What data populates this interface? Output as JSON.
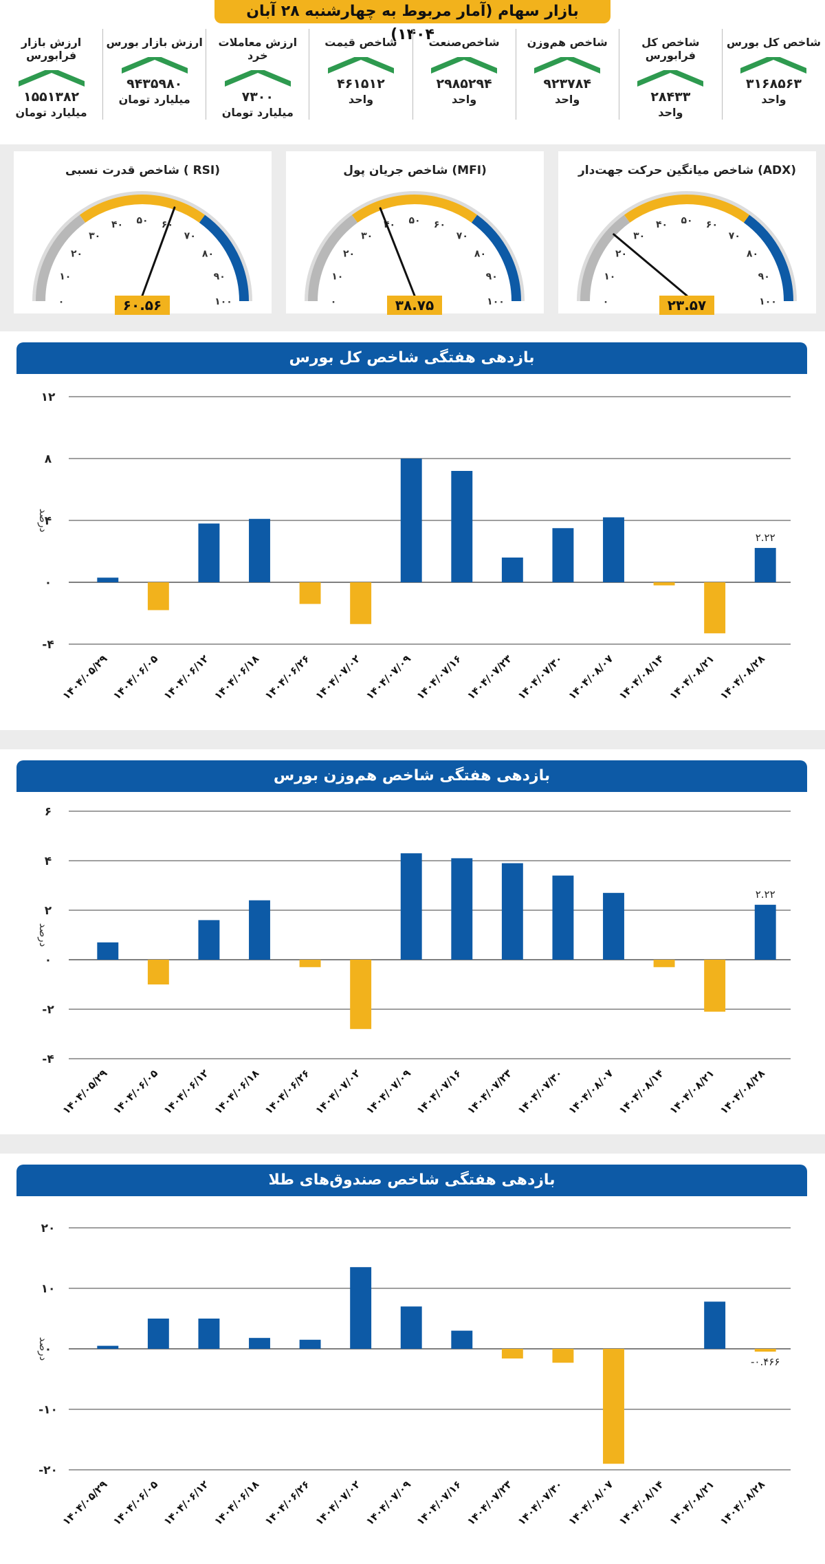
{
  "header": {
    "title": "بازار سهام (آمار مربوط به چهارشنبه ۲۸ آبان ۱۴۰۴)"
  },
  "stats": [
    {
      "label": "شاخص کل بورس",
      "value": "۳۱۶۸۵۶۳",
      "unit": "واحد"
    },
    {
      "label": "شاخص کل فرابورس",
      "value": "۲۸۴۳۳",
      "unit": "واحد"
    },
    {
      "label": "شاخص هم‌وزن",
      "value": "۹۲۳۷۸۴",
      "unit": "واحد"
    },
    {
      "label": "شاخص‌صنعت",
      "value": "۲۹۸۵۲۹۴",
      "unit": "واحد"
    },
    {
      "label": "شاخص قیمت",
      "value": "۴۶۱۵۱۲",
      "unit": "واحد"
    },
    {
      "label": "ارزش معاملات خرد",
      "value": "۷۳۰۰",
      "unit": "میلیارد تومان"
    },
    {
      "label": "ارزش بازار بورس",
      "value": "۹۴۳۵۹۸۰",
      "unit": "میلیارد تومان"
    },
    {
      "label": "ارزش بازار فرابورس",
      "value": "۱۵۵۱۳۸۲",
      "unit": "میلیارد تومان"
    }
  ],
  "gauges": [
    {
      "title": "شاخص میانگین حرکت جهت‌دار (ADX)",
      "value": 23.57,
      "value_label": "۲۳.۵۷",
      "ticks": [
        "۰",
        "۱۰",
        "۲۰",
        "۳۰",
        "۴۰",
        "۵۰",
        "۶۰",
        "۷۰",
        "۸۰",
        "۹۰",
        "۱۰۰"
      ]
    },
    {
      "title": "شاخص جریان پول (MFI)",
      "value": 38.75,
      "value_label": "۳۸.۷۵",
      "ticks": [
        "۰",
        "۱۰",
        "۲۰",
        "۳۰",
        "۴۰",
        "۵۰",
        "۶۰",
        "۷۰",
        "۸۰",
        "۹۰",
        "۱۰۰"
      ]
    },
    {
      "title": "شاخص قدرت نسبی ( RSI)",
      "value": 60.56,
      "value_label": "۶۰.۵۶",
      "ticks": [
        "۰",
        "۱۰",
        "۲۰",
        "۳۰",
        "۴۰",
        "۵۰",
        "۶۰",
        "۷۰",
        "۸۰",
        "۹۰",
        "۱۰۰"
      ]
    }
  ],
  "colors": {
    "accent": "#f2b21c",
    "blue": "#0d5aa6",
    "gray": "#b8b8b8",
    "needle": "#111111"
  },
  "chart_data": [
    {
      "type": "bar",
      "title": "بازدهی هفتگی شاخص کل بورس",
      "ylabel": "درصد",
      "ylim": [
        -4,
        12
      ],
      "yticks": [
        -4,
        0,
        4,
        8,
        12
      ],
      "ytick_labels": [
        "-۴",
        "۰",
        "۴",
        "۸",
        "۱۲"
      ],
      "categories": [
        "۱۴۰۴/۰۵/۲۹",
        "۱۴۰۴/۰۶/۰۵",
        "۱۴۰۴/۰۶/۱۲",
        "۱۴۰۴/۰۶/۱۸",
        "۱۴۰۴/۰۶/۲۶",
        "۱۴۰۴/۰۷/۰۲",
        "۱۴۰۴/۰۷/۰۹",
        "۱۴۰۴/۰۷/۱۶",
        "۱۴۰۴/۰۷/۲۳",
        "۱۴۰۴/۰۷/۳۰",
        "۱۴۰۴/۰۸/۰۷",
        "۱۴۰۴/۰۸/۱۴",
        "۱۴۰۴/۰۸/۲۱",
        "۱۴۰۴/۰۸/۲۸"
      ],
      "values": [
        0.3,
        -1.8,
        3.8,
        4.1,
        -1.4,
        -2.7,
        8.0,
        7.2,
        1.6,
        3.5,
        4.2,
        -0.2,
        -3.3,
        2.22
      ],
      "annotation": {
        "index": 13,
        "text": "۲.۲۲"
      }
    },
    {
      "type": "bar",
      "title": "بازدهی هفتگی شاخص هم‌وزن بورس",
      "ylabel": "درصد",
      "ylim": [
        -4,
        6
      ],
      "yticks": [
        -4,
        -2,
        0,
        2,
        4,
        6
      ],
      "ytick_labels": [
        "-۴",
        "-۲",
        "۰",
        "۲",
        "۴",
        "۶"
      ],
      "categories": [
        "۱۴۰۴/۰۵/۲۹",
        "۱۴۰۴/۰۶/۰۵",
        "۱۴۰۴/۰۶/۱۲",
        "۱۴۰۴/۰۶/۱۸",
        "۱۴۰۴/۰۶/۲۶",
        "۱۴۰۴/۰۷/۰۲",
        "۱۴۰۴/۰۷/۰۹",
        "۱۴۰۴/۰۷/۱۶",
        "۱۴۰۴/۰۷/۲۳",
        "۱۴۰۴/۰۷/۳۰",
        "۱۴۰۴/۰۸/۰۷",
        "۱۴۰۴/۰۸/۱۴",
        "۱۴۰۴/۰۸/۲۱",
        "۱۴۰۴/۰۸/۲۸"
      ],
      "values": [
        0.7,
        -1.0,
        1.6,
        2.4,
        -0.3,
        -2.8,
        4.3,
        4.1,
        3.9,
        3.4,
        2.7,
        -0.3,
        -2.1,
        2.22
      ],
      "annotation": {
        "index": 13,
        "text": "۲.۲۲"
      }
    },
    {
      "type": "bar",
      "title": "بازدهی هفتگی شاخص صندوق‌های طلا",
      "ylabel": "درصد",
      "ylim": [
        -20,
        20
      ],
      "yticks": [
        -20,
        -10,
        0,
        10,
        20
      ],
      "ytick_labels": [
        "-۲۰",
        "-۱۰",
        "۰",
        "۱۰",
        "۲۰"
      ],
      "categories": [
        "۱۴۰۴/۰۵/۲۹",
        "۱۴۰۴/۰۶/۰۵",
        "۱۴۰۴/۰۶/۱۲",
        "۱۴۰۴/۰۶/۱۸",
        "۱۴۰۴/۰۶/۲۶",
        "۱۴۰۴/۰۷/۰۲",
        "۱۴۰۴/۰۷/۰۹",
        "۱۴۰۴/۰۷/۱۶",
        "۱۴۰۴/۰۷/۲۳",
        "۱۴۰۴/۰۷/۳۰",
        "۱۴۰۴/۰۸/۰۷",
        "۱۴۰۴/۰۸/۱۴",
        "۱۴۰۴/۰۸/۲۱",
        "۱۴۰۴/۰۸/۲۸"
      ],
      "values": [
        0.5,
        5.0,
        5.0,
        1.8,
        1.5,
        13.5,
        7.0,
        3.0,
        -1.6,
        -2.3,
        -19.0,
        0,
        7.8,
        -0.466
      ],
      "annotation": {
        "index": 13,
        "text": "-۰.۴۶۶"
      }
    }
  ]
}
